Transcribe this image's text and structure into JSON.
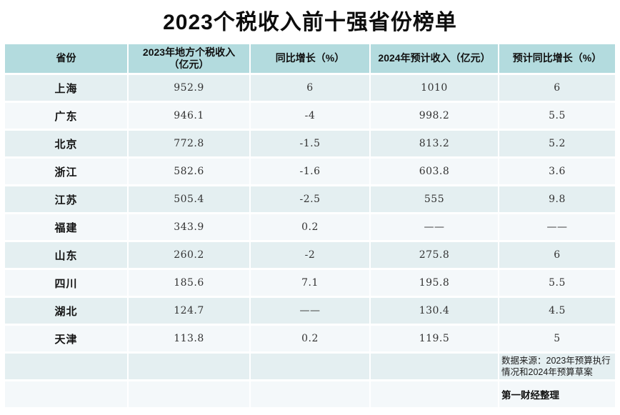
{
  "page": {
    "title": "2023个税收入前十强省份榜单"
  },
  "colors": {
    "header_bg": "#b3dbde",
    "row_teal_bg": "#e4eff1",
    "row_light_bg": "#f4f8fa",
    "page_bg": "#ffffff",
    "text": "#333333"
  },
  "table": {
    "header_lines": [
      "省份",
      "2023年地方个税收入\n（亿元）",
      "同比增长（%）",
      "2024年预计收入（亿元）",
      "预计同比增长（%）"
    ]
  },
  "footer": {
    "source": "数据来源：2023年预算执行情况和2024年预算草案",
    "credit": "第一财经整理"
  },
  "chart_data": {
    "type": "table",
    "title": "2023个税收入前十强省份榜单",
    "columns": [
      "省份",
      "2023年地方个税收入（亿元）",
      "同比增长（%）",
      "2024年预计收入（亿元）",
      "预计同比增长（%）"
    ],
    "rows": [
      [
        "上海",
        "952.9",
        "6",
        "1010",
        "6"
      ],
      [
        "广东",
        "946.1",
        "-4",
        "998.2",
        "5.5"
      ],
      [
        "北京",
        "772.8",
        "-1.5",
        "813.2",
        "5.2"
      ],
      [
        "浙江",
        "582.6",
        "-1.6",
        "603.8",
        "3.6"
      ],
      [
        "江苏",
        "505.4",
        "-2.5",
        "555",
        "9.8"
      ],
      [
        "福建",
        "343.9",
        "0.2",
        "——",
        "——"
      ],
      [
        "山东",
        "260.2",
        "-2",
        "275.8",
        "6"
      ],
      [
        "四川",
        "185.6",
        "7.1",
        "195.8",
        "5.5"
      ],
      [
        "湖北",
        "124.7",
        "——",
        "130.4",
        "4.5"
      ],
      [
        "天津",
        "113.8",
        "0.2",
        "119.5",
        "5"
      ]
    ],
    "notes": [
      "数据来源：2023年预算执行情况和2024年预算草案",
      "第一财经整理"
    ]
  }
}
